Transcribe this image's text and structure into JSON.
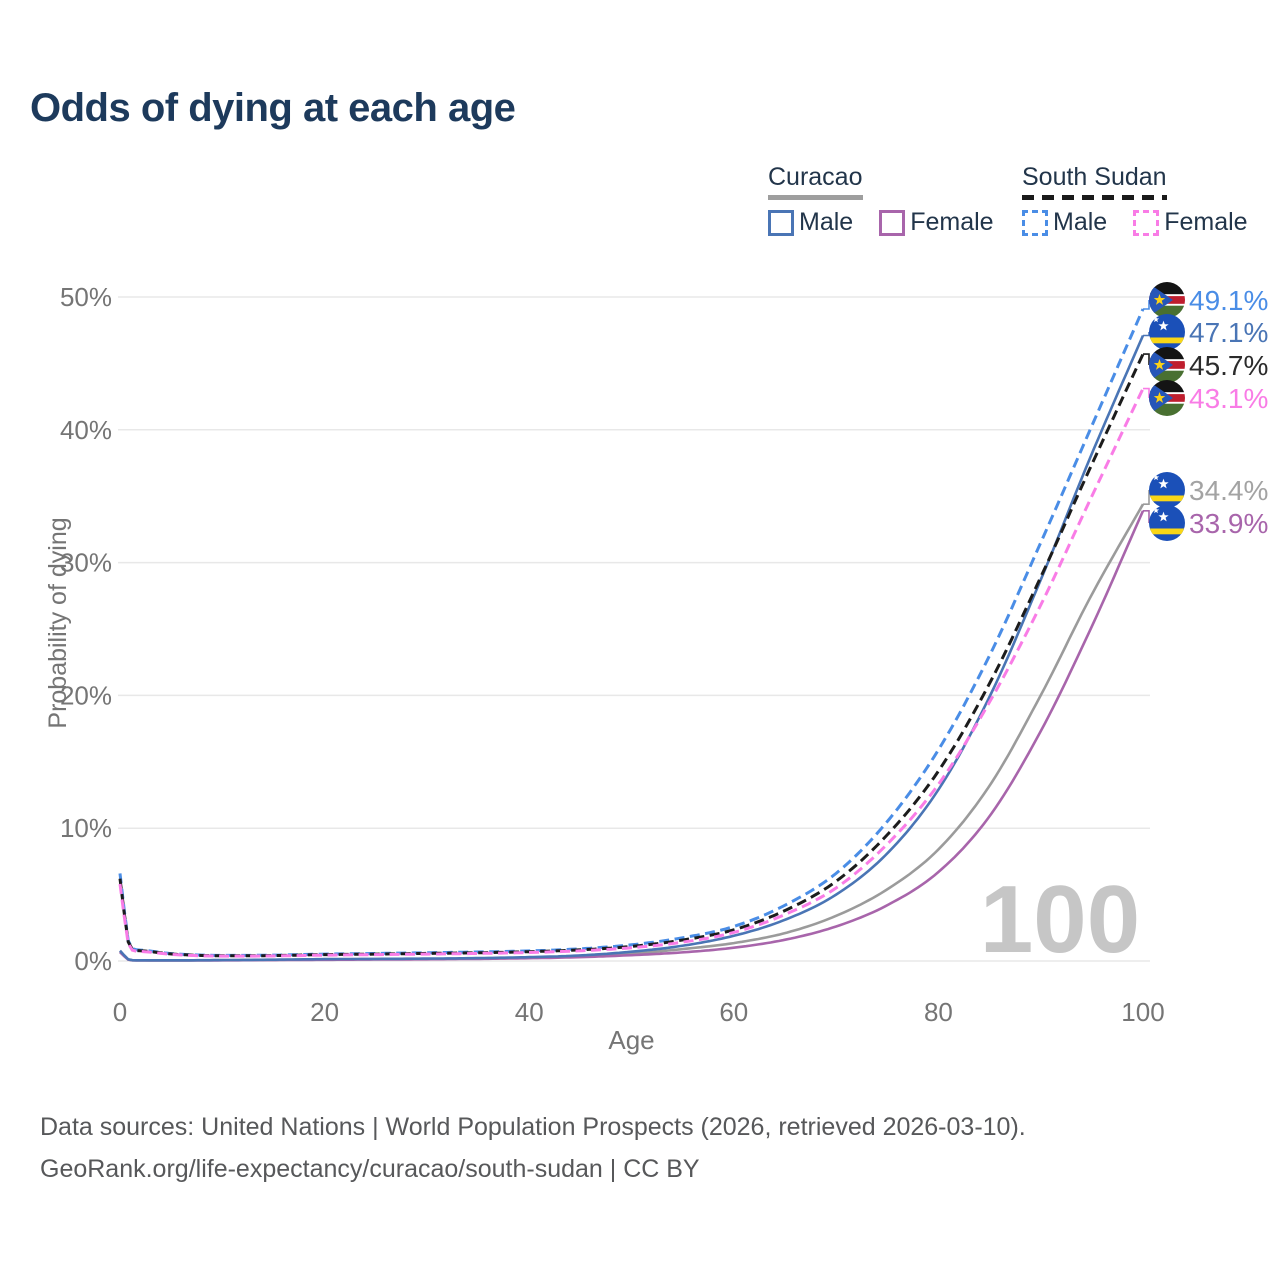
{
  "title": "Odds of dying at each age",
  "legend": {
    "groups": [
      {
        "name": "Curacao",
        "line_style": "solid",
        "underline_color": "#9e9e9e",
        "items": [
          {
            "label": "Male",
            "color": "#4a75b5",
            "dashed": false
          },
          {
            "label": "Female",
            "color": "#a865ab",
            "dashed": false
          }
        ]
      },
      {
        "name": "South Sudan",
        "line_style": "dashed",
        "underline_color": "#1a1a1a",
        "items": [
          {
            "label": "Male",
            "color": "#4a8de6",
            "dashed": true
          },
          {
            "label": "Female",
            "color": "#f97ce6",
            "dashed": true
          }
        ]
      }
    ]
  },
  "chart_data": {
    "type": "line",
    "title": "Odds of dying at each age",
    "xlabel": "Age",
    "ylabel": "Probability of dying",
    "x_ticks": [
      0,
      20,
      40,
      60,
      80,
      100
    ],
    "y_ticks": [
      "0%",
      "10%",
      "20%",
      "30%",
      "40%",
      "50%"
    ],
    "xlim": [
      0,
      100
    ],
    "ylim_percent": [
      0,
      50
    ],
    "grid": true,
    "age_counter": "100",
    "x": [
      0,
      1,
      2,
      5,
      10,
      15,
      20,
      25,
      30,
      35,
      40,
      45,
      50,
      55,
      60,
      65,
      70,
      75,
      80,
      85,
      90,
      95,
      100
    ],
    "series": [
      {
        "name": "South Sudan Male",
        "color": "#4a8de6",
        "dashed": true,
        "flag": "south-sudan",
        "end_label": "49.1%",
        "end_value": 49.1,
        "label_color": "#4a8de6",
        "values": [
          6.6,
          1.05,
          0.82,
          0.56,
          0.42,
          0.44,
          0.52,
          0.57,
          0.62,
          0.68,
          0.76,
          0.92,
          1.22,
          1.75,
          2.6,
          4.2,
          6.6,
          10.5,
          15.9,
          23.0,
          31.5,
          40.3,
          49.1
        ]
      },
      {
        "name": "Curacao Male",
        "color": "#4a75b5",
        "dashed": false,
        "flag": "curacao",
        "end_label": "47.1%",
        "end_value": 47.1,
        "label_color": "#4a75b5",
        "values": [
          0.78,
          0.07,
          0.05,
          0.05,
          0.07,
          0.1,
          0.14,
          0.16,
          0.18,
          0.22,
          0.29,
          0.42,
          0.7,
          1.15,
          1.9,
          3.1,
          5.0,
          8.1,
          12.9,
          19.9,
          28.7,
          38.2,
          47.1
        ]
      },
      {
        "name": "South Sudan Both sexes",
        "color": "#1c1c1c",
        "dashed": true,
        "flag": "south-sudan",
        "end_label": "45.7%",
        "end_value": 45.7,
        "label_color": "#2b2b2b",
        "values": [
          6.2,
          0.98,
          0.77,
          0.53,
          0.39,
          0.41,
          0.48,
          0.52,
          0.57,
          0.62,
          0.7,
          0.84,
          1.1,
          1.58,
          2.35,
          3.8,
          6.0,
          9.5,
          14.3,
          20.9,
          28.9,
          37.4,
          45.7
        ]
      },
      {
        "name": "South Sudan Female",
        "color": "#f97ce6",
        "dashed": true,
        "flag": "south-sudan",
        "end_label": "43.1%",
        "end_value": 43.1,
        "label_color": "#f97ce6",
        "values": [
          5.8,
          0.9,
          0.72,
          0.5,
          0.37,
          0.38,
          0.44,
          0.48,
          0.52,
          0.57,
          0.64,
          0.77,
          1.0,
          1.42,
          2.15,
          3.5,
          5.5,
          8.8,
          13.3,
          19.5,
          26.8,
          35.0,
          43.1
        ]
      },
      {
        "name": "Curacao Both sexes",
        "color": "#9b9b9b",
        "dashed": false,
        "flag": "curacao",
        "end_label": "34.4%",
        "end_value": 34.4,
        "label_color": "#a3a3a3",
        "values": [
          0.72,
          0.06,
          0.05,
          0.045,
          0.06,
          0.085,
          0.12,
          0.14,
          0.16,
          0.19,
          0.25,
          0.35,
          0.55,
          0.9,
          1.35,
          2.1,
          3.4,
          5.4,
          8.4,
          13.2,
          20.0,
          27.6,
          34.4
        ]
      },
      {
        "name": "Curacao Female",
        "color": "#a865ab",
        "dashed": false,
        "flag": "curacao",
        "end_label": "33.9%",
        "end_value": 33.9,
        "label_color": "#a865ab",
        "values": [
          0.66,
          0.055,
          0.045,
          0.04,
          0.05,
          0.07,
          0.09,
          0.11,
          0.13,
          0.16,
          0.21,
          0.29,
          0.44,
          0.65,
          1.0,
          1.6,
          2.6,
          4.2,
          6.7,
          10.9,
          17.3,
          25.2,
          33.9
        ]
      }
    ]
  },
  "footer": {
    "line1": "Data sources: United Nations | World Population Prospects (2026, retrieved 2026-03-10).",
    "line2": "GeoRank.org/life-expectancy/curacao/south-sudan | CC BY"
  },
  "colors": {
    "title": "#1d3a5c",
    "axis_text": "#757575",
    "gridline": "#e8e8e8",
    "watermark": "#c6c6c6",
    "footer_text": "#57585a"
  }
}
